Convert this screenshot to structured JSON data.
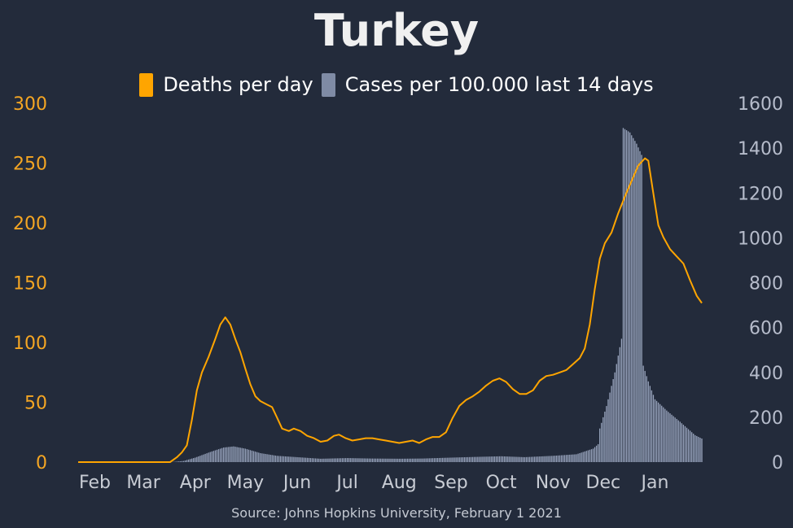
{
  "chart_data": {
    "type": "bar+line",
    "title": "Turkey",
    "source": "Source: Johns Hopkins University, February 1 2021",
    "x_tick_labels": [
      "Feb",
      "Mar",
      "Apr",
      "May",
      "Jun",
      "Jul",
      "Aug",
      "Sep",
      "Oct",
      "Nov",
      "Dec",
      "Jan"
    ],
    "left_axis": {
      "ticks": [
        "0",
        "50",
        "100",
        "150",
        "200",
        "250",
        "300"
      ],
      "range": [
        0,
        300
      ],
      "color": "#f5a623"
    },
    "right_axis": {
      "ticks": [
        "0",
        "200",
        "400",
        "600",
        "800",
        "1000",
        "1200",
        "1400",
        "1600"
      ],
      "range": [
        0,
        1600
      ],
      "color": "#b6bccb"
    },
    "legend": [
      {
        "label": "Deaths per day",
        "color": "#ffa500"
      },
      {
        "label": "Cases per 100.000 last 14 days",
        "color": "#7f8ba5"
      }
    ],
    "deaths_per_day": {
      "axis": "left",
      "points": [
        [
          "2020-01-22",
          0
        ],
        [
          "2020-03-17",
          0
        ],
        [
          "2020-03-21",
          4
        ],
        [
          "2020-03-24",
          8
        ],
        [
          "2020-03-27",
          14
        ],
        [
          "2020-03-30",
          35
        ],
        [
          "2020-04-02",
          60
        ],
        [
          "2020-04-05",
          75
        ],
        [
          "2020-04-09",
          88
        ],
        [
          "2020-04-13",
          103
        ],
        [
          "2020-04-16",
          115
        ],
        [
          "2020-04-19",
          121
        ],
        [
          "2020-04-22",
          115
        ],
        [
          "2020-04-25",
          103
        ],
        [
          "2020-04-28",
          92
        ],
        [
          "2020-05-01",
          78
        ],
        [
          "2020-05-04",
          65
        ],
        [
          "2020-05-07",
          55
        ],
        [
          "2020-05-10",
          51
        ],
        [
          "2020-05-14",
          48
        ],
        [
          "2020-05-17",
          46
        ],
        [
          "2020-05-20",
          37
        ],
        [
          "2020-05-23",
          28
        ],
        [
          "2020-05-27",
          26
        ],
        [
          "2020-05-30",
          28
        ],
        [
          "2020-06-03",
          26
        ],
        [
          "2020-06-07",
          22
        ],
        [
          "2020-06-11",
          20
        ],
        [
          "2020-06-15",
          17
        ],
        [
          "2020-06-19",
          18
        ],
        [
          "2020-06-23",
          22
        ],
        [
          "2020-06-26",
          23
        ],
        [
          "2020-06-30",
          20
        ],
        [
          "2020-07-04",
          18
        ],
        [
          "2020-07-08",
          19
        ],
        [
          "2020-07-12",
          20
        ],
        [
          "2020-07-16",
          20
        ],
        [
          "2020-07-20",
          19
        ],
        [
          "2020-07-24",
          18
        ],
        [
          "2020-07-28",
          17
        ],
        [
          "2020-08-01",
          16
        ],
        [
          "2020-08-05",
          17
        ],
        [
          "2020-08-09",
          18
        ],
        [
          "2020-08-13",
          16
        ],
        [
          "2020-08-17",
          19
        ],
        [
          "2020-08-21",
          21
        ],
        [
          "2020-08-25",
          21
        ],
        [
          "2020-08-29",
          25
        ],
        [
          "2020-09-02",
          37
        ],
        [
          "2020-09-06",
          47
        ],
        [
          "2020-09-10",
          52
        ],
        [
          "2020-09-14",
          55
        ],
        [
          "2020-09-18",
          59
        ],
        [
          "2020-09-22",
          64
        ],
        [
          "2020-09-26",
          68
        ],
        [
          "2020-09-30",
          70
        ],
        [
          "2020-10-04",
          67
        ],
        [
          "2020-10-08",
          61
        ],
        [
          "2020-10-12",
          57
        ],
        [
          "2020-10-16",
          57
        ],
        [
          "2020-10-20",
          60
        ],
        [
          "2020-10-24",
          68
        ],
        [
          "2020-10-28",
          72
        ],
        [
          "2020-11-01",
          73
        ],
        [
          "2020-11-05",
          75
        ],
        [
          "2020-11-09",
          77
        ],
        [
          "2020-11-13",
          82
        ],
        [
          "2020-11-17",
          87
        ],
        [
          "2020-11-20",
          95
        ],
        [
          "2020-11-23",
          115
        ],
        [
          "2020-11-26",
          145
        ],
        [
          "2020-11-29",
          170
        ],
        [
          "2020-12-02",
          183
        ],
        [
          "2020-12-06",
          192
        ],
        [
          "2020-12-10",
          208
        ],
        [
          "2020-12-14",
          222
        ],
        [
          "2020-12-18",
          235
        ],
        [
          "2020-12-22",
          248
        ],
        [
          "2020-12-26",
          254
        ],
        [
          "2020-12-28",
          252
        ],
        [
          "2020-12-31",
          225
        ],
        [
          "2021-01-03",
          198
        ],
        [
          "2021-01-06",
          188
        ],
        [
          "2021-01-10",
          178
        ],
        [
          "2021-01-14",
          172
        ],
        [
          "2021-01-18",
          166
        ],
        [
          "2021-01-22",
          152
        ],
        [
          "2021-01-26",
          139
        ],
        [
          "2021-01-29",
          133
        ]
      ]
    },
    "cases_per_100k_14d": {
      "axis": "right",
      "points": [
        [
          "2020-01-22",
          0
        ],
        [
          "2020-03-18",
          0
        ],
        [
          "2020-03-25",
          5
        ],
        [
          "2020-04-01",
          20
        ],
        [
          "2020-04-10",
          45
        ],
        [
          "2020-04-18",
          65
        ],
        [
          "2020-04-24",
          70
        ],
        [
          "2020-05-01",
          60
        ],
        [
          "2020-05-10",
          40
        ],
        [
          "2020-05-20",
          28
        ],
        [
          "2020-06-01",
          22
        ],
        [
          "2020-06-15",
          15
        ],
        [
          "2020-07-01",
          18
        ],
        [
          "2020-07-15",
          16
        ],
        [
          "2020-08-01",
          15
        ],
        [
          "2020-08-15",
          16
        ],
        [
          "2020-09-01",
          20
        ],
        [
          "2020-09-15",
          23
        ],
        [
          "2020-10-01",
          26
        ],
        [
          "2020-10-15",
          22
        ],
        [
          "2020-11-01",
          28
        ],
        [
          "2020-11-15",
          35
        ],
        [
          "2020-11-25",
          60
        ],
        [
          "2020-11-28",
          80
        ],
        [
          "2020-11-29",
          150
        ],
        [
          "2020-12-03",
          250
        ],
        [
          "2020-12-08",
          400
        ],
        [
          "2020-12-12",
          550
        ],
        [
          "2020-12-13",
          1490
        ],
        [
          "2020-12-17",
          1470
        ],
        [
          "2020-12-21",
          1420
        ],
        [
          "2020-12-24",
          1370
        ],
        [
          "2020-12-25",
          430
        ],
        [
          "2020-12-28",
          360
        ],
        [
          "2021-01-01",
          280
        ],
        [
          "2021-01-08",
          230
        ],
        [
          "2021-01-16",
          180
        ],
        [
          "2021-01-22",
          140
        ],
        [
          "2021-01-25",
          120
        ],
        [
          "2021-01-29",
          105
        ]
      ]
    }
  }
}
